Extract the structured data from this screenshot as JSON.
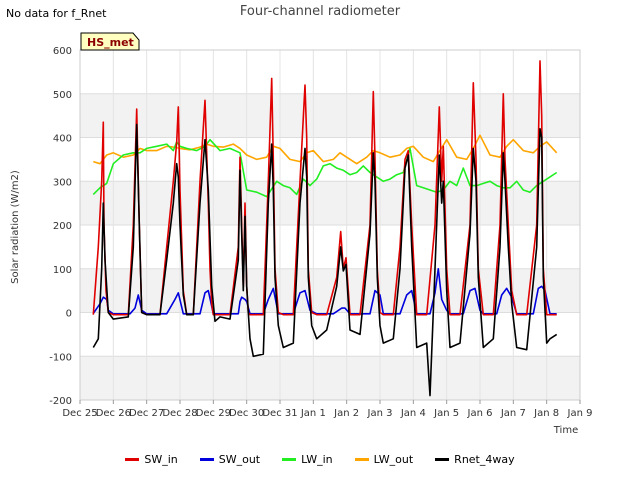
{
  "header": {
    "corner_note": "No data for f_Rnet",
    "title": "Four-channel radiometer",
    "site_badge": "HS_met"
  },
  "colors": {
    "SW_in": "#e00000",
    "SW_out": "#0000dd",
    "LW_in": "#22ee22",
    "LW_out": "#ffa500",
    "Rnet_4way": "#000000",
    "badge_fill": "#ffffc0",
    "badge_text": "#8b0000",
    "band": "#f2f2f2"
  },
  "chart_data": {
    "type": "line",
    "title": "Four-channel radiometer",
    "xlabel": "Time",
    "ylabel": "Solar radiation (W/m2)",
    "ylim": [
      -200,
      600
    ],
    "xlim": [
      0,
      15
    ],
    "grid": true,
    "legend_position": "bottom",
    "x_ticks": [
      "Dec 25",
      "Dec 26",
      "Dec 27",
      "Dec 28",
      "Dec 29",
      "Dec 30",
      "Dec 31",
      "Jan 1",
      "Jan 2",
      "Jan 3",
      "Jan 4",
      "Jan 5",
      "Jan 6",
      "Jan 7",
      "Jan 8",
      "Jan 9"
    ],
    "y_ticks": [
      -200,
      -100,
      0,
      100,
      200,
      300,
      400,
      500,
      600
    ],
    "x_unit": "days since Dec 25",
    "series": [
      {
        "name": "SW_in",
        "x": [
          0.4,
          0.55,
          0.65,
          0.7,
          0.72,
          0.78,
          0.85,
          1.0,
          1.45,
          1.6,
          1.7,
          1.78,
          1.85,
          2.0,
          2.4,
          2.6,
          2.8,
          2.9,
          2.95,
          3.0,
          3.1,
          3.2,
          3.4,
          3.6,
          3.75,
          3.85,
          3.9,
          3.95,
          4.0,
          4.1,
          4.2,
          4.5,
          4.75,
          4.8,
          4.85,
          4.9,
          4.95,
          5.0,
          5.05,
          5.1,
          5.2,
          5.5,
          5.65,
          5.75,
          5.8,
          5.85,
          5.95,
          6.1,
          6.4,
          6.6,
          6.75,
          6.8,
          6.85,
          6.95,
          7.1,
          7.4,
          7.7,
          7.82,
          7.9,
          7.98,
          8.1,
          8.4,
          8.7,
          8.8,
          8.85,
          8.92,
          9.0,
          9.1,
          9.4,
          9.6,
          9.75,
          9.85,
          9.95,
          10.1,
          10.4,
          10.65,
          10.78,
          10.85,
          10.9,
          11.0,
          11.1,
          11.4,
          11.7,
          11.8,
          11.88,
          11.95,
          12.1,
          12.4,
          12.6,
          12.7,
          12.75,
          12.85,
          12.95,
          13.1,
          13.4,
          13.7,
          13.8,
          13.85,
          13.9,
          14.0,
          14.1,
          14.3
        ],
        "y": [
          -5,
          150,
          300,
          435,
          200,
          50,
          0,
          -5,
          -5,
          200,
          465,
          200,
          0,
          -5,
          -5,
          150,
          300,
          390,
          470,
          280,
          50,
          -5,
          -5,
          300,
          485,
          250,
          100,
          20,
          -5,
          -5,
          -5,
          -5,
          150,
          355,
          200,
          60,
          250,
          60,
          0,
          -5,
          -5,
          -5,
          300,
          535,
          350,
          100,
          0,
          -5,
          -5,
          300,
          520,
          400,
          100,
          0,
          -5,
          -5,
          80,
          185,
          100,
          125,
          -5,
          -5,
          200,
          505,
          350,
          100,
          0,
          -5,
          -5,
          150,
          350,
          370,
          200,
          -5,
          -5,
          200,
          470,
          300,
          380,
          100,
          -5,
          -5,
          200,
          525,
          350,
          100,
          -5,
          -5,
          200,
          500,
          350,
          200,
          50,
          -5,
          -5,
          200,
          575,
          450,
          100,
          -5,
          -5,
          -5
        ]
      },
      {
        "name": "SW_out",
        "x": [
          0.4,
          0.6,
          0.7,
          0.8,
          0.85,
          1.0,
          1.5,
          1.65,
          1.75,
          1.85,
          2.0,
          2.6,
          2.85,
          2.95,
          3.1,
          3.6,
          3.75,
          3.85,
          4.0,
          4.75,
          4.8,
          4.85,
          4.95,
          5.0,
          5.1,
          5.5,
          5.65,
          5.8,
          5.95,
          6.4,
          6.6,
          6.75,
          6.9,
          7.1,
          7.6,
          7.85,
          7.95,
          8.1,
          8.7,
          8.85,
          9.0,
          9.1,
          9.6,
          9.8,
          9.95,
          10.1,
          10.5,
          10.65,
          10.75,
          10.85,
          11.0,
          11.1,
          11.5,
          11.7,
          11.85,
          12.0,
          12.1,
          12.5,
          12.65,
          12.8,
          12.95,
          13.1,
          13.6,
          13.75,
          13.85,
          13.95,
          14.1,
          14.3
        ],
        "y": [
          -2,
          20,
          35,
          30,
          5,
          -3,
          -3,
          10,
          40,
          5,
          -3,
          -3,
          30,
          45,
          -3,
          -3,
          45,
          50,
          -3,
          -3,
          25,
          35,
          30,
          25,
          -3,
          -3,
          30,
          55,
          -3,
          -3,
          45,
          50,
          5,
          -3,
          -3,
          10,
          10,
          -3,
          -3,
          50,
          40,
          -3,
          -3,
          40,
          50,
          -3,
          -3,
          45,
          100,
          30,
          5,
          -3,
          -3,
          50,
          55,
          5,
          -3,
          -3,
          40,
          55,
          35,
          -3,
          -3,
          55,
          60,
          50,
          -3,
          -3
        ]
      },
      {
        "name": "LW_in",
        "x": [
          0.4,
          0.6,
          0.8,
          1.0,
          1.3,
          1.6,
          1.8,
          2.0,
          2.3,
          2.6,
          2.8,
          2.9,
          3.0,
          3.2,
          3.5,
          3.75,
          3.9,
          4.2,
          4.5,
          4.8,
          5.0,
          5.3,
          5.6,
          5.9,
          6.1,
          6.3,
          6.5,
          6.7,
          6.9,
          7.1,
          7.3,
          7.5,
          7.7,
          7.9,
          8.1,
          8.3,
          8.5,
          8.7,
          8.9,
          9.1,
          9.3,
          9.5,
          9.7,
          9.9,
          10.1,
          10.3,
          10.5,
          10.7,
          10.9,
          11.1,
          11.3,
          11.5,
          11.7,
          11.9,
          12.1,
          12.3,
          12.5,
          12.7,
          12.9,
          13.1,
          13.3,
          13.5,
          13.7,
          13.9,
          14.1,
          14.3
        ],
        "y": [
          270,
          285,
          295,
          340,
          360,
          365,
          365,
          375,
          380,
          385,
          370,
          390,
          380,
          375,
          370,
          380,
          395,
          370,
          375,
          365,
          280,
          275,
          265,
          300,
          290,
          285,
          270,
          305,
          290,
          305,
          335,
          340,
          330,
          325,
          315,
          320,
          335,
          320,
          310,
          300,
          305,
          315,
          320,
          375,
          290,
          285,
          280,
          275,
          280,
          300,
          290,
          330,
          290,
          290,
          295,
          300,
          290,
          285,
          285,
          300,
          280,
          275,
          290,
          300,
          310,
          320
        ]
      },
      {
        "name": "LW_out",
        "x": [
          0.4,
          0.6,
          0.8,
          1.0,
          1.3,
          1.6,
          1.8,
          2.0,
          2.3,
          2.6,
          2.8,
          3.0,
          3.3,
          3.6,
          3.8,
          4.0,
          4.3,
          4.6,
          4.8,
          5.0,
          5.3,
          5.6,
          5.8,
          6.0,
          6.3,
          6.6,
          6.8,
          7.0,
          7.3,
          7.6,
          7.8,
          8.0,
          8.3,
          8.6,
          8.8,
          9.0,
          9.3,
          9.6,
          9.8,
          10.0,
          10.3,
          10.6,
          10.8,
          11.0,
          11.3,
          11.6,
          11.8,
          12.0,
          12.3,
          12.6,
          12.8,
          13.0,
          13.3,
          13.6,
          13.8,
          14.0,
          14.3
        ],
        "y": [
          345,
          340,
          360,
          365,
          355,
          360,
          375,
          370,
          370,
          380,
          378,
          375,
          372,
          378,
          385,
          380,
          378,
          385,
          375,
          360,
          350,
          355,
          380,
          375,
          350,
          345,
          365,
          370,
          345,
          350,
          365,
          355,
          340,
          355,
          370,
          365,
          355,
          360,
          375,
          380,
          355,
          345,
          370,
          395,
          355,
          350,
          375,
          405,
          360,
          355,
          380,
          395,
          370,
          365,
          380,
          390,
          365
        ]
      },
      {
        "name": "Rnet_4way",
        "x": [
          0.4,
          0.55,
          0.65,
          0.7,
          0.75,
          0.85,
          1.0,
          1.45,
          1.6,
          1.7,
          1.78,
          1.85,
          2.0,
          2.4,
          2.6,
          2.8,
          2.9,
          2.95,
          3.0,
          3.1,
          3.2,
          3.4,
          3.6,
          3.75,
          3.85,
          3.95,
          4.05,
          4.2,
          4.5,
          4.75,
          4.8,
          4.85,
          4.9,
          4.95,
          5.0,
          5.05,
          5.1,
          5.2,
          5.5,
          5.65,
          5.75,
          5.8,
          5.85,
          5.95,
          6.1,
          6.4,
          6.6,
          6.75,
          6.8,
          6.85,
          6.95,
          7.1,
          7.4,
          7.7,
          7.82,
          7.9,
          7.98,
          8.1,
          8.4,
          8.7,
          8.8,
          8.85,
          8.92,
          9.0,
          9.1,
          9.4,
          9.6,
          9.75,
          9.85,
          9.95,
          10.1,
          10.4,
          10.5,
          10.65,
          10.78,
          10.85,
          10.9,
          11.0,
          11.1,
          11.4,
          11.7,
          11.8,
          11.88,
          11.95,
          12.1,
          12.4,
          12.6,
          12.7,
          12.75,
          12.85,
          12.95,
          13.1,
          13.4,
          13.7,
          13.8,
          13.85,
          13.9,
          14.0,
          14.1,
          14.3
        ],
        "y": [
          -80,
          -60,
          100,
          250,
          120,
          0,
          -15,
          -10,
          150,
          430,
          200,
          0,
          -5,
          -5,
          120,
          250,
          340,
          310,
          200,
          40,
          -5,
          -5,
          250,
          395,
          280,
          60,
          -20,
          -10,
          -15,
          120,
          325,
          180,
          50,
          220,
          60,
          0,
          -60,
          -100,
          -95,
          250,
          385,
          280,
          80,
          -30,
          -80,
          -70,
          250,
          375,
          310,
          80,
          -30,
          -60,
          -40,
          60,
          150,
          95,
          110,
          -40,
          -50,
          180,
          365,
          300,
          80,
          -30,
          -70,
          -60,
          100,
          330,
          360,
          150,
          -80,
          -70,
          -190,
          100,
          360,
          250,
          300,
          50,
          -80,
          -70,
          180,
          375,
          300,
          80,
          -80,
          -60,
          150,
          365,
          300,
          150,
          20,
          -80,
          -85,
          150,
          420,
          400,
          80,
          -70,
          -60,
          -50
        ]
      }
    ]
  }
}
